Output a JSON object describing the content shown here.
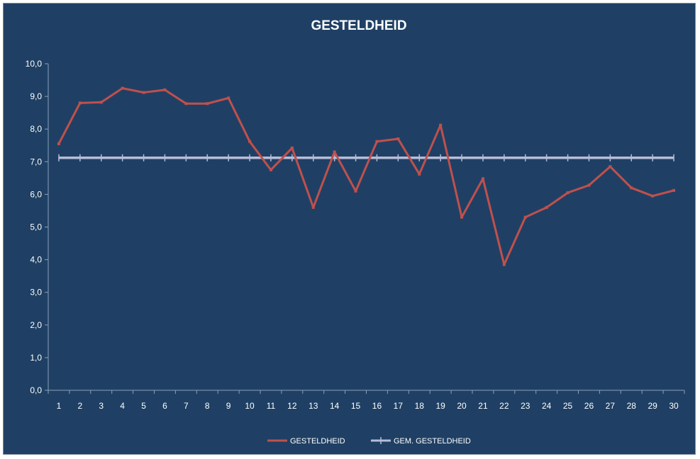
{
  "chart_data": {
    "type": "line",
    "title": "GESTELDHEID",
    "xlabel": "",
    "ylabel": "",
    "categories": [
      "1",
      "2",
      "3",
      "4",
      "5",
      "6",
      "7",
      "8",
      "9",
      "10",
      "11",
      "12",
      "13",
      "14",
      "15",
      "16",
      "17",
      "18",
      "19",
      "20",
      "21",
      "22",
      "23",
      "24",
      "25",
      "26",
      "27",
      "28",
      "29",
      "30"
    ],
    "ylim": [
      0,
      10
    ],
    "yticks": [
      "0,0",
      "1,0",
      "2,0",
      "3,0",
      "4,0",
      "5,0",
      "6,0",
      "7,0",
      "8,0",
      "9,0",
      "10,0"
    ],
    "grid": false,
    "legend_position": "bottom",
    "series": [
      {
        "name": "GESTELDHEID",
        "color": "#c0504d",
        "values": [
          7.55,
          8.8,
          8.82,
          9.25,
          9.12,
          9.2,
          8.78,
          8.78,
          8.95,
          7.62,
          6.75,
          7.42,
          5.6,
          7.3,
          6.1,
          7.62,
          7.7,
          6.62,
          8.12,
          5.3,
          6.48,
          3.85,
          5.3,
          5.6,
          6.05,
          6.28,
          6.85,
          6.2,
          5.95,
          6.12
        ]
      },
      {
        "name": "GEM. GESTELDHEID",
        "color": "#b8bcd8",
        "values": [
          7.12,
          7.12,
          7.12,
          7.12,
          7.12,
          7.12,
          7.12,
          7.12,
          7.12,
          7.12,
          7.12,
          7.12,
          7.12,
          7.12,
          7.12,
          7.12,
          7.12,
          7.12,
          7.12,
          7.12,
          7.12,
          7.12,
          7.12,
          7.12,
          7.12,
          7.12,
          7.12,
          7.12,
          7.12,
          7.12
        ]
      }
    ]
  }
}
